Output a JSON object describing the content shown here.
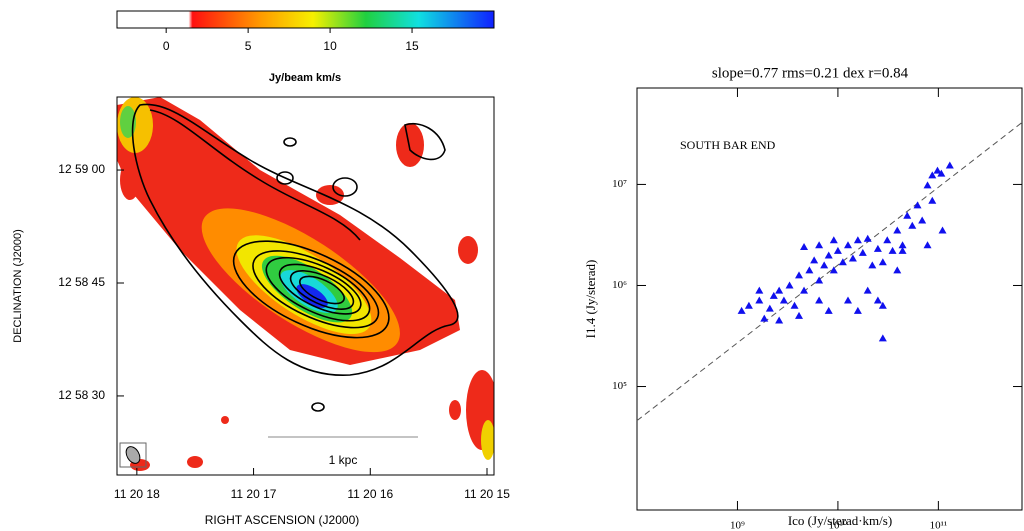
{
  "chart_data": [
    {
      "type": "image",
      "colorbar": {
        "label": "Jy/beam km/s",
        "xlim": [
          -3,
          20
        ],
        "xticks": [
          0,
          5,
          10,
          15
        ]
      },
      "xlabel": "RIGHT ASCENSION  (J2000)",
      "ylabel": "DECLINATION  (J2000)",
      "xlim": [
        18.17,
        14.94
      ],
      "xticks": [
        {
          "value": 18,
          "label": "11 20 18"
        },
        {
          "value": 17,
          "label": "11 20 17"
        },
        {
          "value": 16,
          "label": "11 20 16"
        },
        {
          "value": 15,
          "label": "11 20 15"
        }
      ],
      "ylim": [
        19.5,
        69.7
      ],
      "yticks": [
        {
          "value": 60,
          "label": "12 59 00"
        },
        {
          "value": 45,
          "label": "12 58 45"
        },
        {
          "value": 30,
          "label": "12 58 30"
        }
      ],
      "annotation": "1 kpc"
    },
    {
      "type": "scatter",
      "title": "slope=0.77  rms=0.21  dex   r=0.84",
      "annotation": "SOUTH BAR END",
      "xlabel": "Ico  (Jy/sterad·km/s)",
      "ylabel": "I1.4  (Jy/sterad)",
      "log": true,
      "color": "#1010ee",
      "xlim": [
        100000000.0,
        680000000000.0
      ],
      "ylim": [
        6000,
        90000000.0
      ],
      "xticks": [
        {
          "value": 1000000000.0,
          "label": "10⁹"
        },
        {
          "value": 10000000000.0,
          "label": "10¹⁰"
        },
        {
          "value": 100000000000.0,
          "label": "10¹¹"
        }
      ],
      "yticks": [
        {
          "value": 10000000.0,
          "label": "10⁷"
        },
        {
          "value": 1000000.0,
          "label": "10⁶"
        },
        {
          "value": 100000.0,
          "label": "10⁵"
        }
      ],
      "x": [
        1100000000.0,
        1300000000.0,
        1650000000.0,
        1850000000.0,
        2100000000.0,
        2300000000.0,
        2600000000.0,
        2900000000.0,
        3300000000.0,
        3700000000.0,
        4100000000.0,
        4600000000.0,
        5200000000.0,
        5800000000.0,
        6500000000.0,
        7300000000.0,
        8100000000.0,
        9100000000.0,
        10000000000.0,
        11200000000.0,
        12600000000.0,
        14100000000.0,
        15800000000.0,
        17700000000.0,
        19800000000.0,
        22000000000.0,
        25000000000.0,
        28000000000.0,
        31000000000.0,
        35000000000.0,
        39000000000.0,
        44000000000.0,
        49000000000.0,
        55000000000.0,
        62000000000.0,
        69000000000.0,
        78000000000.0,
        87000000000.0,
        98000000000.0,
        110000000000.0,
        78000000000.0,
        39000000000.0,
        25000000000.0,
        19800000000.0,
        15800000000.0,
        12600000000.0,
        8100000000.0,
        6500000000.0,
        4100000000.0,
        2600000000.0,
        1650000000.0,
        4600000000.0,
        6500000000.0,
        9100000000.0,
        28000000000.0,
        44000000000.0,
        87000000000.0,
        107000000000.0,
        130000000000.0,
        28000000000.0
      ],
      "values": [
        560000.0,
        630000.0,
        710000.0,
        470000.0,
        590000.0,
        790000.0,
        890000.0,
        710000.0,
        1000000.0,
        630000.0,
        1260000.0,
        890000.0,
        1410000.0,
        1770000.0,
        1120000.0,
        1580000.0,
        1980000.0,
        1410000.0,
        2200000.0,
        1700000.0,
        2500000.0,
        1850000.0,
        2800000.0,
        2100000.0,
        2900000.0,
        1580000.0,
        2300000.0,
        1700000.0,
        2800000.0,
        2200000.0,
        3500000.0,
        2500000.0,
        4900000.0,
        3900000.0,
        6200000.0,
        4400000.0,
        9800000.0,
        6900000.0,
        13700000.0,
        3500000.0,
        2500000.0,
        1410000.0,
        710000.0,
        890000.0,
        560000.0,
        710000.0,
        560000.0,
        710000.0,
        500000.0,
        450000.0,
        890000.0,
        2400000.0,
        2500000.0,
        2800000.0,
        630000.0,
        2200000.0,
        12300000.0,
        12800000.0,
        15400000.0,
        300000.0
      ],
      "fit": {
        "x": [
          100000000.0,
          680000000000.0
        ],
        "values": [
          46000.0,
          41000000.0
        ]
      }
    }
  ]
}
